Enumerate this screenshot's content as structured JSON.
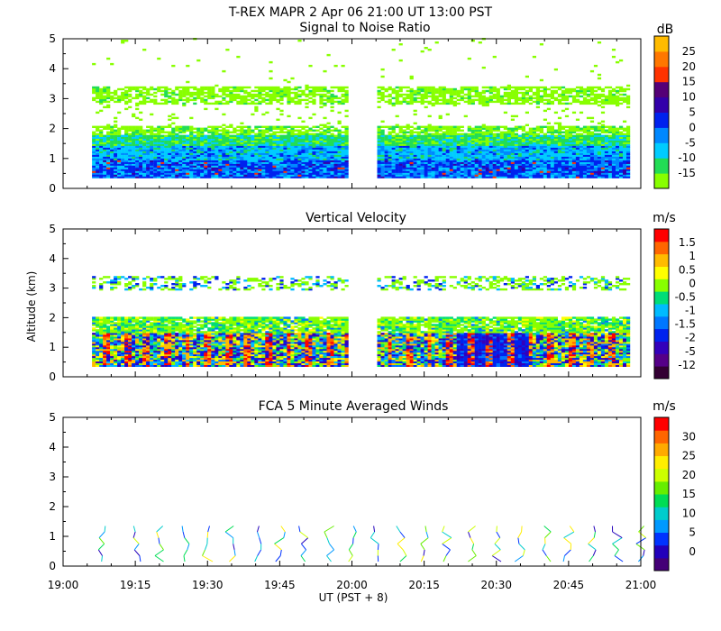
{
  "header": {
    "title": "T-REX   MAPR   2 Apr 06   21:00 UT   13:00   PST"
  },
  "axes": {
    "ylabel": "Altitude (km)",
    "xlabel": "UT  (PST + 8)",
    "y_ticks": [
      "0",
      "1",
      "2",
      "3",
      "4",
      "5"
    ],
    "x_ticks": [
      "19:00",
      "19:15",
      "19:30",
      "19:45",
      "20:00",
      "20:15",
      "20:30",
      "20:45",
      "21:00"
    ]
  },
  "colors": {
    "snr": [
      "#88ff00",
      "#22dd55",
      "#00ccff",
      "#0088ff",
      "#0022ee",
      "#3300aa",
      "#550077",
      "#ff3300",
      "#ff7700",
      "#ffbb00"
    ],
    "vel": [
      "#330033",
      "#550088",
      "#3300bb",
      "#0022ee",
      "#0077ff",
      "#00bbff",
      "#00dd77",
      "#88ff00",
      "#ffff00",
      "#ffbb00",
      "#ff6600",
      "#ff0000"
    ],
    "wind": [
      "#440077",
      "#2200bb",
      "#0033ff",
      "#0099ff",
      "#00cccc",
      "#00dd55",
      "#66ee00",
      "#ccff00",
      "#ffee00",
      "#ffaa00",
      "#ff6600",
      "#ff0000"
    ]
  },
  "chart_data": [
    {
      "type": "heatmap",
      "id": "snr",
      "title": "Signal to Noise Ratio",
      "unit": "dB",
      "xlim": [
        19.0,
        21.0
      ],
      "ylim": [
        0,
        5
      ],
      "x_range_unit": "hours UT",
      "colorbar_labels": [
        "-15",
        "-10",
        "-5",
        "0",
        "5",
        "10",
        "15",
        "20",
        "25"
      ],
      "data_gap": [
        19.98,
        20.08
      ],
      "layers": [
        {
          "name": "boundary-layer",
          "alt_range": [
            0.35,
            2.0
          ],
          "snr_db_range": [
            -15,
            5
          ]
        },
        {
          "name": "upper-layer",
          "alt_range": [
            2.8,
            3.4
          ],
          "snr_db_range": [
            -15,
            -10
          ]
        },
        {
          "name": "sparse-echoes",
          "alt_range": [
            3.4,
            5.0
          ],
          "snr_db_range": [
            -15,
            -10
          ]
        }
      ]
    },
    {
      "type": "heatmap",
      "id": "velocity",
      "title": "Vertical Velocity",
      "unit": "m/s",
      "xlim": [
        19.0,
        21.0
      ],
      "ylim": [
        0,
        5
      ],
      "colorbar_labels": [
        "-12",
        "-5",
        "-2",
        "-1.5",
        "-1",
        "-0.5",
        "0",
        "0.5",
        "1",
        "1.5"
      ],
      "data_gap": [
        19.98,
        20.08
      ],
      "layers": [
        {
          "name": "boundary-layer",
          "alt_range": [
            0.35,
            2.0
          ],
          "velocity_range": [
            -12,
            1.5
          ]
        },
        {
          "name": "upper-layer",
          "alt_range": [
            2.9,
            3.4
          ],
          "velocity_range": [
            -2,
            0
          ]
        }
      ]
    },
    {
      "type": "scatter",
      "id": "winds",
      "title": "FCA 5 Minute Averaged Winds",
      "unit": "m/s",
      "xlim": [
        19.0,
        21.0
      ],
      "ylim": [
        0,
        5
      ],
      "colorbar_labels": [
        "0",
        "5",
        "10",
        "15",
        "20",
        "25",
        "30"
      ],
      "profiles_ut": [
        19.13,
        19.25,
        19.33,
        19.42,
        19.5,
        19.58,
        19.67,
        19.75,
        19.83,
        19.92,
        20.0,
        20.08,
        20.17,
        20.25,
        20.33,
        20.42,
        20.5,
        20.58,
        20.67,
        20.75,
        20.83,
        20.92,
        21.0
      ],
      "max_altitude_km": 1.5,
      "speed_range_ms": [
        2,
        22
      ]
    }
  ]
}
